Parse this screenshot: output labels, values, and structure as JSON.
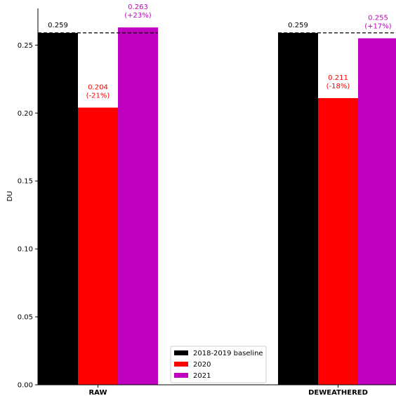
{
  "chart_data": {
    "type": "bar",
    "categories": [
      "RAW",
      "DEWEATHERED"
    ],
    "ylabel": "DU",
    "xlabel": "",
    "ylim": [
      0,
      0.277
    ],
    "yticks": [
      "0.00",
      "0.05",
      "0.10",
      "0.15",
      "0.20",
      "0.25"
    ],
    "grid": false,
    "legend_position": "bottom-center",
    "series": [
      {
        "name": "2018-2019 baseline",
        "color": "#000000",
        "values": [
          0.259,
          0.259
        ],
        "labels": [
          "0.259",
          "0.259"
        ],
        "sublabels": [
          "",
          ""
        ]
      },
      {
        "name": "2020",
        "color": "#ff0000",
        "values": [
          0.204,
          0.211
        ],
        "labels": [
          "0.204",
          "0.211"
        ],
        "sublabels": [
          "(-21%)",
          "(-18%)"
        ]
      },
      {
        "name": "2021",
        "color": "#bf00bf",
        "values": [
          0.263,
          0.255
        ],
        "labels": [
          "0.263",
          "0.255"
        ],
        "sublabels": [
          "(+23%)",
          "(+17%)"
        ]
      }
    ],
    "baseline_lines": [
      0.259,
      0.259
    ]
  }
}
